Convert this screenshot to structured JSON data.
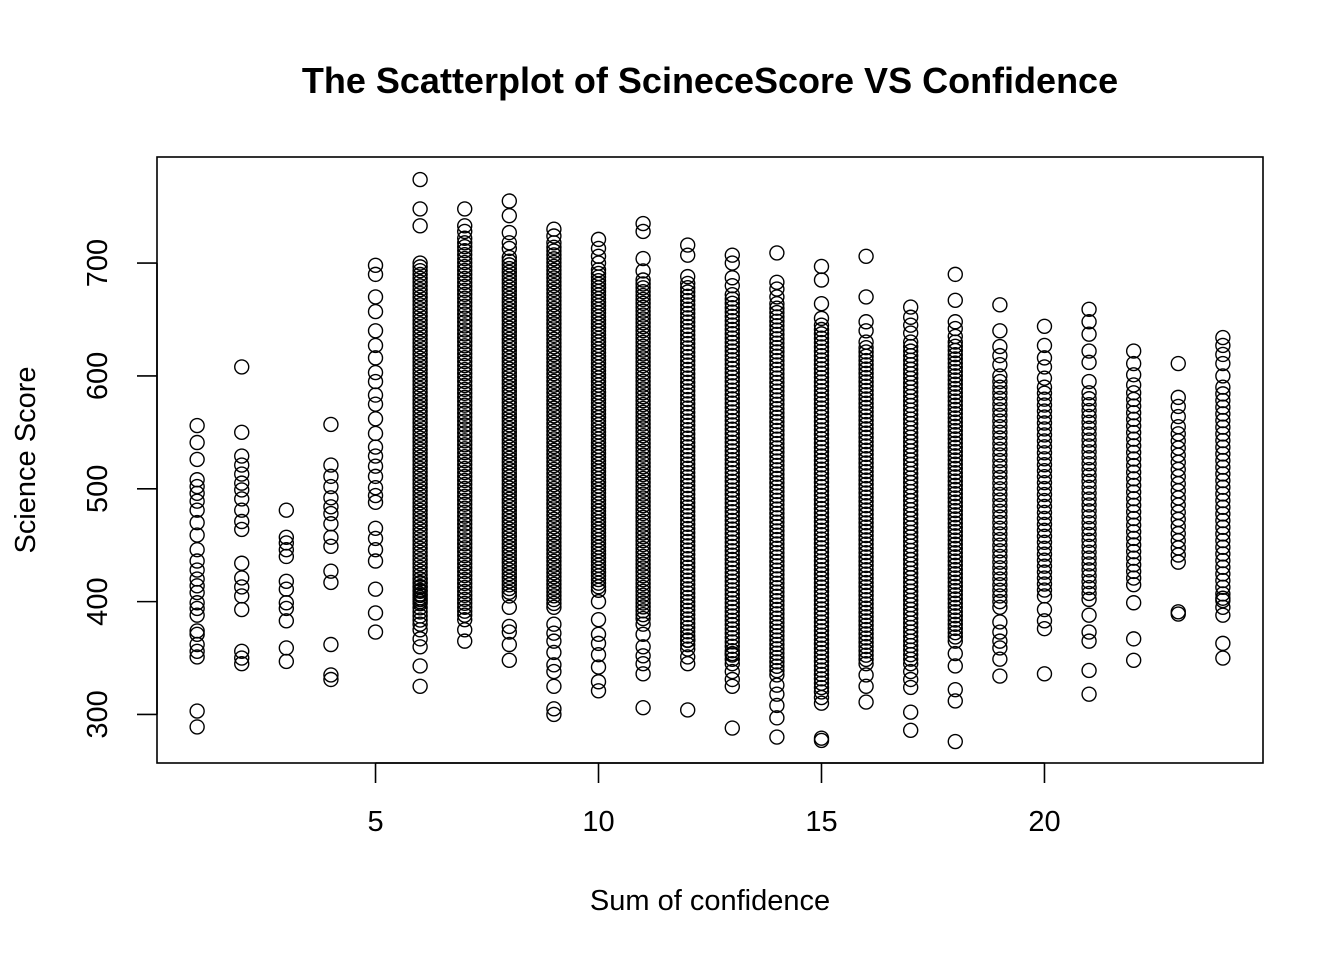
{
  "chart_data": {
    "type": "scatter",
    "title": "The Scatterplot of ScineceScore VS Confidence",
    "xlabel": "Sum of confidence",
    "ylabel": "Science Score",
    "xlim": [
      0.1,
      24.9
    ],
    "ylim": [
      257,
      794
    ],
    "x_ticks": [
      5,
      10,
      15,
      20
    ],
    "y_ticks": [
      300,
      400,
      500,
      600,
      700
    ],
    "grid": false,
    "legend": "none",
    "marker": "open-circle",
    "colors": {
      "point": "#000000",
      "background": "#ffffff"
    },
    "points": [
      {
        "x": 1,
        "y": 289
      },
      {
        "x": 1,
        "y": 303
      },
      {
        "x": 1,
        "y": 351
      },
      {
        "x": 1,
        "y": 356
      },
      {
        "x": 1,
        "y": 362
      },
      {
        "x": 1,
        "y": 371
      },
      {
        "x": 1,
        "y": 374
      },
      {
        "x": 1,
        "y": 388
      },
      {
        "x": 1,
        "y": 394
      },
      {
        "x": 1,
        "y": 399
      },
      {
        "x": 1,
        "y": 408
      },
      {
        "x": 1,
        "y": 414
      },
      {
        "x": 1,
        "y": 420
      },
      {
        "x": 1,
        "y": 428
      },
      {
        "x": 1,
        "y": 436
      },
      {
        "x": 1,
        "y": 446
      },
      {
        "x": 1,
        "y": 459
      },
      {
        "x": 1,
        "y": 470
      },
      {
        "x": 1,
        "y": 481
      },
      {
        "x": 1,
        "y": 489
      },
      {
        "x": 1,
        "y": 496
      },
      {
        "x": 1,
        "y": 502
      },
      {
        "x": 1,
        "y": 508
      },
      {
        "x": 1,
        "y": 526
      },
      {
        "x": 1,
        "y": 541
      },
      {
        "x": 1,
        "y": 556
      },
      {
        "x": 2,
        "y": 345
      },
      {
        "x": 2,
        "y": 350
      },
      {
        "x": 2,
        "y": 356
      },
      {
        "x": 2,
        "y": 393
      },
      {
        "x": 2,
        "y": 405
      },
      {
        "x": 2,
        "y": 413
      },
      {
        "x": 2,
        "y": 421
      },
      {
        "x": 2,
        "y": 434
      },
      {
        "x": 2,
        "y": 464
      },
      {
        "x": 2,
        "y": 471
      },
      {
        "x": 2,
        "y": 481
      },
      {
        "x": 2,
        "y": 491
      },
      {
        "x": 2,
        "y": 499
      },
      {
        "x": 2,
        "y": 505
      },
      {
        "x": 2,
        "y": 513
      },
      {
        "x": 2,
        "y": 521
      },
      {
        "x": 2,
        "y": 529
      },
      {
        "x": 2,
        "y": 550
      },
      {
        "x": 2,
        "y": 608
      },
      {
        "x": 3,
        "y": 347
      },
      {
        "x": 3,
        "y": 359
      },
      {
        "x": 3,
        "y": 383
      },
      {
        "x": 3,
        "y": 394
      },
      {
        "x": 3,
        "y": 399
      },
      {
        "x": 3,
        "y": 411
      },
      {
        "x": 3,
        "y": 418
      },
      {
        "x": 3,
        "y": 440
      },
      {
        "x": 3,
        "y": 446
      },
      {
        "x": 3,
        "y": 452
      },
      {
        "x": 3,
        "y": 457
      },
      {
        "x": 3,
        "y": 481
      },
      {
        "x": 4,
        "y": 331
      },
      {
        "x": 4,
        "y": 335
      },
      {
        "x": 4,
        "y": 362
      },
      {
        "x": 4,
        "y": 417
      },
      {
        "x": 4,
        "y": 427
      },
      {
        "x": 4,
        "y": 449
      },
      {
        "x": 4,
        "y": 457
      },
      {
        "x": 4,
        "y": 469
      },
      {
        "x": 4,
        "y": 478
      },
      {
        "x": 4,
        "y": 484
      },
      {
        "x": 4,
        "y": 492
      },
      {
        "x": 4,
        "y": 502
      },
      {
        "x": 4,
        "y": 511
      },
      {
        "x": 4,
        "y": 521
      },
      {
        "x": 4,
        "y": 557
      },
      {
        "x": 5,
        "y": 373
      },
      {
        "x": 5,
        "y": 390
      },
      {
        "x": 5,
        "y": 411
      },
      {
        "x": 5,
        "y": 436
      },
      {
        "x": 5,
        "y": 446
      },
      {
        "x": 5,
        "y": 456
      },
      {
        "x": 5,
        "y": 465
      },
      {
        "x": 5,
        "y": 488
      },
      {
        "x": 5,
        "y": 494
      },
      {
        "x": 5,
        "y": 501
      },
      {
        "x": 5,
        "y": 511
      },
      {
        "x": 5,
        "y": 520
      },
      {
        "x": 5,
        "y": 529
      },
      {
        "x": 5,
        "y": 537
      },
      {
        "x": 5,
        "y": 549
      },
      {
        "x": 5,
        "y": 562
      },
      {
        "x": 5,
        "y": 575
      },
      {
        "x": 5,
        "y": 583
      },
      {
        "x": 5,
        "y": 595
      },
      {
        "x": 5,
        "y": 603
      },
      {
        "x": 5,
        "y": 616
      },
      {
        "x": 5,
        "y": 627
      },
      {
        "x": 5,
        "y": 640
      },
      {
        "x": 5,
        "y": 657
      },
      {
        "x": 5,
        "y": 670
      },
      {
        "x": 5,
        "y": 690
      },
      {
        "x": 5,
        "y": 698
      }
    ],
    "dense_bands": [
      {
        "x": 6,
        "low": 400,
        "high": 700,
        "n": 90
      },
      {
        "x": 6,
        "low": 380,
        "high": 420,
        "n": 12
      },
      {
        "x": 6,
        "y_outliers": [
          325,
          343,
          360,
          367,
          375,
          733,
          748,
          774
        ]
      },
      {
        "x": 7,
        "low": 388,
        "high": 718,
        "n": 95
      },
      {
        "x": 7,
        "y_outliers": [
          365,
          375,
          384,
          722,
          728,
          733,
          748
        ]
      },
      {
        "x": 8,
        "low": 405,
        "high": 705,
        "n": 92
      },
      {
        "x": 8,
        "y_outliers": [
          348,
          362,
          373,
          378,
          395,
          713,
          718,
          727,
          742,
          755
        ]
      },
      {
        "x": 9,
        "low": 395,
        "high": 714,
        "n": 95
      },
      {
        "x": 9,
        "y_outliers": [
          300,
          305,
          325,
          338,
          344,
          355,
          365,
          372,
          380,
          718,
          724,
          730
        ]
      },
      {
        "x": 10,
        "low": 410,
        "high": 694,
        "n": 90
      },
      {
        "x": 10,
        "y_outliers": [
          321,
          329,
          342,
          353,
          363,
          371,
          384,
          400,
          700,
          706,
          713,
          721
        ]
      },
      {
        "x": 11,
        "low": 385,
        "high": 685,
        "n": 88
      },
      {
        "x": 11,
        "y_outliers": [
          306,
          336,
          345,
          352,
          360,
          371,
          380,
          693,
          704,
          728,
          735
        ]
      },
      {
        "x": 12,
        "low": 358,
        "high": 682,
        "n": 86
      },
      {
        "x": 12,
        "y_outliers": [
          304,
          345,
          351,
          366,
          688,
          707,
          716
        ]
      },
      {
        "x": 13,
        "low": 345,
        "high": 672,
        "n": 86
      },
      {
        "x": 13,
        "y_outliers": [
          288,
          325,
          331,
          338,
          354,
          680,
          687,
          700,
          707
        ]
      },
      {
        "x": 14,
        "low": 335,
        "high": 660,
        "n": 85
      },
      {
        "x": 14,
        "y_outliers": [
          280,
          297,
          308,
          318,
          326,
          664,
          670,
          677,
          683,
          709
        ]
      },
      {
        "x": 15,
        "low": 320,
        "high": 645,
        "n": 85
      },
      {
        "x": 15,
        "y_outliers": [
          277,
          279,
          310,
          315,
          651,
          664,
          685,
          697
        ]
      },
      {
        "x": 16,
        "low": 345,
        "high": 625,
        "n": 75
      },
      {
        "x": 16,
        "y_outliers": [
          311,
          325,
          335,
          630,
          640,
          648,
          670,
          706
        ]
      },
      {
        "x": 17,
        "low": 345,
        "high": 630,
        "n": 72
      },
      {
        "x": 17,
        "y_outliers": [
          286,
          302,
          324,
          331,
          338,
          638,
          645,
          652,
          661
        ]
      },
      {
        "x": 18,
        "low": 365,
        "high": 630,
        "n": 72
      },
      {
        "x": 18,
        "y_outliers": [
          276,
          312,
          322,
          343,
          354,
          635,
          642,
          648,
          667,
          690
        ]
      },
      {
        "x": 19,
        "low": 395,
        "high": 600,
        "n": 42
      },
      {
        "x": 19,
        "y_outliers": [
          334,
          349,
          359,
          365,
          373,
          382,
          610,
          618,
          626,
          640,
          663
        ]
      },
      {
        "x": 20,
        "low": 405,
        "high": 590,
        "n": 36
      },
      {
        "x": 20,
        "y_outliers": [
          336,
          376,
          383,
          393,
          598,
          608,
          616,
          627,
          644
        ]
      },
      {
        "x": 21,
        "low": 402,
        "high": 585,
        "n": 36
      },
      {
        "x": 21,
        "y_outliers": [
          318,
          339,
          365,
          373,
          388,
          595,
          612,
          622,
          637,
          648,
          659
        ]
      },
      {
        "x": 22,
        "low": 415,
        "high": 585,
        "n": 30
      },
      {
        "x": 22,
        "y_outliers": [
          348,
          367,
          399,
          592,
          601,
          611,
          622
        ]
      },
      {
        "x": 23,
        "low": 435,
        "high": 555,
        "n": 20
      },
      {
        "x": 23,
        "y_outliers": [
          389,
          391,
          564,
          573,
          581,
          611
        ]
      },
      {
        "x": 24,
        "low": 395,
        "high": 590,
        "n": 34
      },
      {
        "x": 24,
        "y_outliers": [
          350,
          363,
          388,
          403,
          600,
          611,
          619,
          627,
          634
        ]
      }
    ]
  }
}
